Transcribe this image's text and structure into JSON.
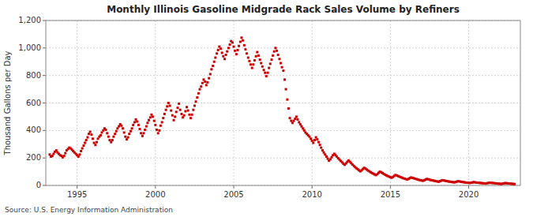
{
  "chart_data": {
    "type": "scatter",
    "title": "Monthly Illinois Gasoline Midgrade Rack Sales Volume by Refiners",
    "ylabel": "Thousand Gallons per Day",
    "annotations": [
      "Source: U.S. Energy Information Administration"
    ],
    "color": "#cc0000",
    "marker": "square",
    "grid": true,
    "xlim": [
      1993.0,
      2023.3
    ],
    "xticks": [
      1995,
      2000,
      2005,
      2010,
      2015,
      2020
    ],
    "ylim": [
      0,
      1200
    ],
    "yticks": [
      0,
      200,
      400,
      600,
      800,
      {
        "value": 1000,
        "label": "1,000"
      },
      {
        "value": 1200,
        "label": "1,200"
      }
    ],
    "x": [
      1993.25,
      1993.33,
      1993.42,
      1993.5,
      1993.58,
      1993.67,
      1993.75,
      1993.83,
      1993.92,
      1994.0,
      1994.08,
      1994.17,
      1994.25,
      1994.33,
      1994.42,
      1994.5,
      1994.58,
      1994.67,
      1994.75,
      1994.83,
      1994.92,
      1995.0,
      1995.08,
      1995.17,
      1995.25,
      1995.33,
      1995.42,
      1995.5,
      1995.58,
      1995.67,
      1995.75,
      1995.83,
      1995.92,
      1996.0,
      1996.08,
      1996.17,
      1996.25,
      1996.33,
      1996.42,
      1996.5,
      1996.58,
      1996.67,
      1996.75,
      1996.83,
      1996.92,
      1997.0,
      1997.08,
      1997.17,
      1997.25,
      1997.33,
      1997.42,
      1997.5,
      1997.58,
      1997.67,
      1997.75,
      1997.83,
      1997.92,
      1998.0,
      1998.08,
      1998.17,
      1998.25,
      1998.33,
      1998.42,
      1998.5,
      1998.58,
      1998.67,
      1998.75,
      1998.83,
      1998.92,
      1999.0,
      1999.08,
      1999.17,
      1999.25,
      1999.33,
      1999.42,
      1999.5,
      1999.58,
      1999.67,
      1999.75,
      1999.83,
      1999.92,
      2000.0,
      2000.08,
      2000.17,
      2000.25,
      2000.33,
      2000.42,
      2000.5,
      2000.58,
      2000.67,
      2000.75,
      2000.83,
      2000.92,
      2001.0,
      2001.08,
      2001.17,
      2001.25,
      2001.33,
      2001.42,
      2001.5,
      2001.58,
      2001.67,
      2001.75,
      2001.83,
      2001.92,
      2002.0,
      2002.08,
      2002.17,
      2002.25,
      2002.33,
      2002.42,
      2002.5,
      2002.58,
      2002.67,
      2002.75,
      2002.83,
      2002.92,
      2003.0,
      2003.08,
      2003.17,
      2003.25,
      2003.33,
      2003.42,
      2003.5,
      2003.58,
      2003.67,
      2003.75,
      2003.83,
      2003.92,
      2004.0,
      2004.08,
      2004.17,
      2004.25,
      2004.33,
      2004.42,
      2004.5,
      2004.58,
      2004.67,
      2004.75,
      2004.83,
      2004.92,
      2005.0,
      2005.08,
      2005.17,
      2005.25,
      2005.33,
      2005.42,
      2005.5,
      2005.58,
      2005.67,
      2005.75,
      2005.83,
      2005.92,
      2006.0,
      2006.08,
      2006.17,
      2006.25,
      2006.33,
      2006.42,
      2006.5,
      2006.58,
      2006.67,
      2006.75,
      2006.83,
      2006.92,
      2007.0,
      2007.08,
      2007.17,
      2007.25,
      2007.33,
      2007.42,
      2007.5,
      2007.58,
      2007.67,
      2007.75,
      2007.83,
      2007.92,
      2008.0,
      2008.08,
      2008.17,
      2008.25,
      2008.33,
      2008.42,
      2008.5,
      2008.58,
      2008.67,
      2008.75,
      2008.83,
      2008.92,
      2009.0,
      2009.08,
      2009.17,
      2009.25,
      2009.33,
      2009.42,
      2009.5,
      2009.58,
      2009.67,
      2009.75,
      2009.83,
      2009.92,
      2010.0,
      2010.08,
      2010.17,
      2010.25,
      2010.33,
      2010.42,
      2010.5,
      2010.58,
      2010.67,
      2010.75,
      2010.83,
      2010.92,
      2011.0,
      2011.08,
      2011.17,
      2011.25,
      2011.33,
      2011.42,
      2011.5,
      2011.58,
      2011.67,
      2011.75,
      2011.83,
      2011.92,
      2012.0,
      2012.08,
      2012.17,
      2012.25,
      2012.33,
      2012.42,
      2012.5,
      2012.58,
      2012.67,
      2012.75,
      2012.83,
      2012.92,
      2013.0,
      2013.08,
      2013.17,
      2013.25,
      2013.33,
      2013.42,
      2013.5,
      2013.58,
      2013.67,
      2013.75,
      2013.83,
      2013.92,
      2014.0,
      2014.08,
      2014.17,
      2014.25,
      2014.33,
      2014.42,
      2014.5,
      2014.58,
      2014.67,
      2014.75,
      2014.83,
      2014.92,
      2015.0,
      2015.08,
      2015.17,
      2015.25,
      2015.33,
      2015.42,
      2015.5,
      2015.58,
      2015.67,
      2015.75,
      2015.83,
      2015.92,
      2016.0,
      2016.08,
      2016.17,
      2016.25,
      2016.33,
      2016.42,
      2016.5,
      2016.58,
      2016.67,
      2016.75,
      2016.83,
      2016.92,
      2017.0,
      2017.08,
      2017.17,
      2017.25,
      2017.33,
      2017.42,
      2017.5,
      2017.58,
      2017.67,
      2017.75,
      2017.83,
      2017.92,
      2018.0,
      2018.08,
      2018.17,
      2018.25,
      2018.33,
      2018.42,
      2018.5,
      2018.58,
      2018.67,
      2018.75,
      2018.83,
      2018.92,
      2019.0,
      2019.08,
      2019.17,
      2019.25,
      2019.33,
      2019.42,
      2019.5,
      2019.58,
      2019.67,
      2019.75,
      2019.83,
      2019.92,
      2020.0,
      2020.08,
      2020.17,
      2020.25,
      2020.33,
      2020.42,
      2020.5,
      2020.58,
      2020.67,
      2020.75,
      2020.83,
      2020.92,
      2021.0,
      2021.08,
      2021.17,
      2021.25,
      2021.33,
      2021.42,
      2021.5,
      2021.58,
      2021.67,
      2021.75,
      2021.83,
      2021.92,
      2022.0,
      2022.08,
      2022.17,
      2022.25,
      2022.33,
      2022.42,
      2022.5,
      2022.58,
      2022.67,
      2022.75,
      2022.83,
      2022.92
    ],
    "values": [
      225,
      210,
      215,
      230,
      245,
      255,
      240,
      230,
      220,
      215,
      205,
      215,
      235,
      255,
      265,
      275,
      270,
      260,
      250,
      240,
      230,
      220,
      210,
      225,
      250,
      270,
      290,
      310,
      330,
      350,
      375,
      390,
      370,
      340,
      310,
      295,
      315,
      340,
      355,
      365,
      385,
      400,
      415,
      405,
      380,
      355,
      330,
      315,
      330,
      355,
      375,
      395,
      415,
      430,
      445,
      435,
      415,
      385,
      355,
      335,
      350,
      375,
      395,
      415,
      440,
      460,
      480,
      465,
      440,
      410,
      380,
      360,
      380,
      405,
      430,
      455,
      475,
      495,
      515,
      500,
      470,
      440,
      405,
      380,
      400,
      435,
      460,
      490,
      520,
      550,
      575,
      600,
      580,
      545,
      510,
      475,
      500,
      535,
      565,
      595,
      550,
      520,
      495,
      510,
      540,
      570,
      545,
      515,
      490,
      515,
      550,
      580,
      610,
      640,
      670,
      700,
      720,
      745,
      770,
      755,
      730,
      750,
      780,
      810,
      845,
      870,
      900,
      930,
      960,
      985,
      1010,
      995,
      965,
      940,
      920,
      950,
      975,
      1000,
      1025,
      1050,
      1040,
      1010,
      980,
      955,
      985,
      1015,
      1045,
      1075,
      1055,
      1020,
      990,
      960,
      930,
      905,
      880,
      855,
      880,
      910,
      940,
      970,
      945,
      915,
      890,
      865,
      840,
      820,
      795,
      820,
      855,
      885,
      915,
      945,
      975,
      1000,
      980,
      950,
      920,
      890,
      860,
      835,
      770,
      700,
      625,
      560,
      490,
      470,
      455,
      470,
      485,
      500,
      480,
      460,
      445,
      430,
      415,
      400,
      385,
      375,
      365,
      355,
      340,
      325,
      310,
      330,
      350,
      335,
      315,
      295,
      275,
      255,
      240,
      225,
      210,
      195,
      180,
      190,
      205,
      220,
      230,
      220,
      210,
      198,
      188,
      178,
      168,
      158,
      150,
      160,
      172,
      182,
      172,
      162,
      152,
      142,
      133,
      125,
      118,
      110,
      103,
      110,
      120,
      128,
      122,
      115,
      108,
      102,
      96,
      90,
      85,
      80,
      75,
      82,
      92,
      100,
      96,
      90,
      84,
      78,
      73,
      68,
      64,
      60,
      56,
      62,
      70,
      76,
      72,
      68,
      64,
      60,
      56,
      52,
      49,
      46,
      43,
      48,
      54,
      58,
      55,
      52,
      49,
      46,
      43,
      40,
      38,
      36,
      34,
      38,
      43,
      47,
      45,
      42,
      39,
      37,
      35,
      33,
      31,
      29,
      27,
      31,
      35,
      38,
      36,
      34,
      32,
      30,
      28,
      27,
      25,
      24,
      22,
      25,
      28,
      31,
      29,
      27,
      25,
      24,
      22,
      21,
      20,
      19,
      18,
      20,
      22,
      24,
      22,
      21,
      20,
      19,
      18,
      17,
      16,
      15,
      14,
      16,
      18,
      20,
      19,
      18,
      17,
      16,
      15,
      14,
      13,
      12,
      11,
      13,
      15,
      17,
      16,
      15,
      14,
      13,
      12,
      11,
      10
    ]
  }
}
